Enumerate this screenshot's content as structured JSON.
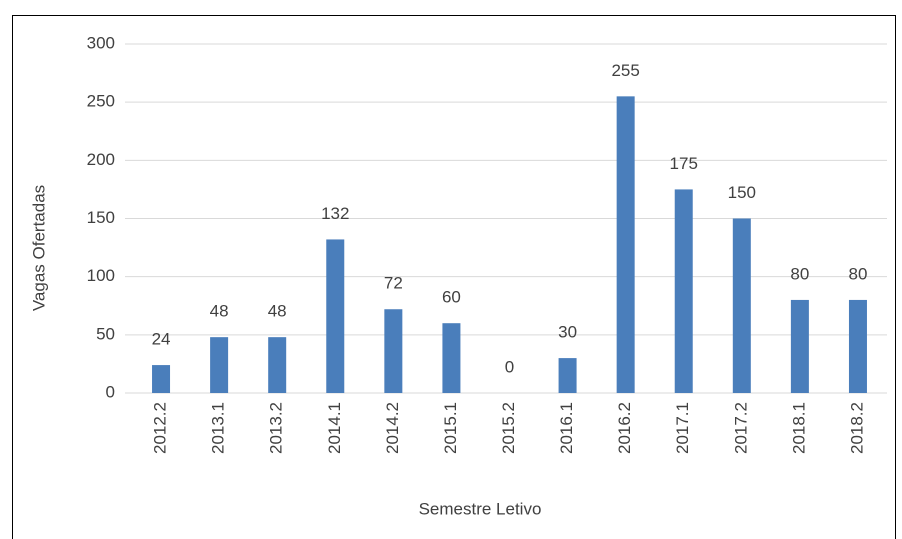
{
  "chart_data": {
    "type": "bar",
    "x_label": "Semestre Letivo",
    "y_label": "Vagas Ofertadas",
    "categories": [
      "2012.2",
      "2013.1",
      "2013.2",
      "2014.1",
      "2014.2",
      "2015.1",
      "2015.2",
      "2016.1",
      "2016.2",
      "2017.1",
      "2017.2",
      "2018.1",
      "2018.2"
    ],
    "values": [
      24,
      48,
      48,
      132,
      72,
      60,
      0,
      30,
      255,
      175,
      150,
      80,
      80
    ],
    "color": "#4a7ebb",
    "ylim": [
      0,
      300
    ],
    "yticks": [
      0,
      50,
      100,
      150,
      200,
      250,
      300
    ],
    "grid": true
  }
}
